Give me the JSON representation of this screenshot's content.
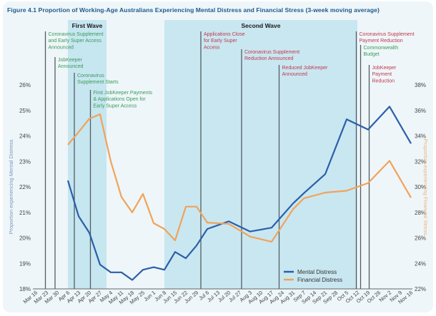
{
  "title": "Figure 4.1 Proportion of Working-Age Australians Experiencing Mental Distress and Financial Stress (3-week moving average)",
  "chart_data": {
    "type": "line",
    "title": "Figure 4.1 Proportion of Working-Age Australians Experiencing Mental Distress and Financial Stress (3-week moving average)",
    "xlabel": "",
    "ylabel_left": "Proportion experiencing Mental Distress",
    "ylabel_right": "Proportion experiencing Financial Stress",
    "x_ticks": [
      "Mar 16",
      "Mar 23",
      "Mar 30",
      "Apr 6",
      "Apr 13",
      "Apr 20",
      "Apr 27",
      "May 4",
      "May 11",
      "May 18",
      "May 25",
      "Jun 1",
      "Jun 8",
      "Jun 15",
      "Jun 22",
      "Jun 29",
      "Jul 6",
      "Jul 13",
      "Jul 20",
      "Jul 27",
      "Aug 3",
      "Aug 10",
      "Aug 17",
      "Aug 24",
      "Aug 31",
      "Sep 7",
      "Sep 14",
      "Sep 21",
      "Sep 28",
      "Oct 5",
      "Oct 12",
      "Oct 19",
      "Oct 26",
      "Nov 2",
      "Nov 9",
      "Nov 16"
    ],
    "ylim_left": [
      18,
      26
    ],
    "ylim_right": [
      22,
      38
    ],
    "y_ticks_left": [
      "18%",
      "19%",
      "20%",
      "21%",
      "22%",
      "23%",
      "24%",
      "25%",
      "26%"
    ],
    "y_ticks_right": [
      "22%",
      "24%",
      "26%",
      "28%",
      "30%",
      "32%",
      "34%",
      "36%",
      "38%"
    ],
    "grid": false,
    "legend_position": "bottom-right",
    "series": [
      {
        "name": "Mental Distress",
        "axis": "left",
        "color": "#2b5fa8",
        "x": [
          3,
          4,
          5,
          6,
          7,
          8,
          9,
          10,
          11,
          12,
          13,
          14,
          15,
          16,
          18,
          20,
          22,
          24,
          25,
          27,
          29,
          31,
          33,
          35
        ],
        "values": [
          22.25,
          20.85,
          20.2,
          18.95,
          18.65,
          18.65,
          18.35,
          18.75,
          18.85,
          18.75,
          19.45,
          19.2,
          19.7,
          20.35,
          20.65,
          20.25,
          20.4,
          21.35,
          21.75,
          22.5,
          24.65,
          24.25,
          25.15,
          23.7
        ]
      },
      {
        "name": "Financial Distress",
        "axis": "right",
        "color": "#f0a35a",
        "x": [
          3,
          4,
          5,
          6,
          7,
          8,
          9,
          10,
          11,
          12,
          13,
          14,
          15,
          16,
          18,
          20,
          22,
          24,
          25,
          27,
          29,
          31,
          33,
          35
        ],
        "values": [
          33.3,
          34.3,
          35.35,
          35.7,
          32.0,
          29.2,
          28.0,
          29.45,
          27.15,
          26.7,
          25.8,
          28.45,
          28.45,
          27.2,
          27.1,
          26.1,
          25.7,
          28.25,
          29.1,
          29.55,
          29.7,
          30.3,
          32.05,
          29.15
        ]
      }
    ],
    "bands": [
      {
        "label": "First Wave",
        "x_start": 3,
        "x_end": 6.6
      },
      {
        "label": "Second Wave",
        "x_start": 12,
        "x_end": 30
      }
    ],
    "events": [
      {
        "x": 0.9,
        "label_lines": [
          "Coronavirus Supplement",
          "and Early Super Access",
          "Announced"
        ],
        "color": "#3a9a5a"
      },
      {
        "x": 1.8,
        "label_lines": [
          "JobKeeper",
          "Announced"
        ],
        "color": "#3a9a5a"
      },
      {
        "x": 3.6,
        "label_lines": [
          "Coronavirus",
          "Supplement Starts"
        ],
        "color": "#3a9a5a"
      },
      {
        "x": 5.1,
        "label_lines": [
          "First JobKeeper Payments",
          "& Applications Open for",
          "Early Super Access"
        ],
        "color": "#3a9a5a"
      },
      {
        "x": 15.4,
        "label_lines": [
          "Applications Close",
          "for Early Super",
          "Access"
        ],
        "color": "#c0394b"
      },
      {
        "x": 19.2,
        "label_lines": [
          "Coronavirus Supplement",
          "Reduction Announced"
        ],
        "color": "#c0394b"
      },
      {
        "x": 22.7,
        "label_lines": [
          "Reduced JobKeeper",
          "Announced"
        ],
        "color": "#c0394b"
      },
      {
        "x": 29.9,
        "label_lines": [
          "Coronavirus Supplement",
          "Payment Reduction"
        ],
        "color": "#c0394b"
      },
      {
        "x": 30.3,
        "label_lines": [
          "Commonwealth",
          "Budget"
        ],
        "color": "#3a9a5a"
      },
      {
        "x": 31.1,
        "label_lines": [
          "JobKeeper",
          "Payment",
          "Reduction"
        ],
        "color": "#c0394b"
      }
    ]
  }
}
